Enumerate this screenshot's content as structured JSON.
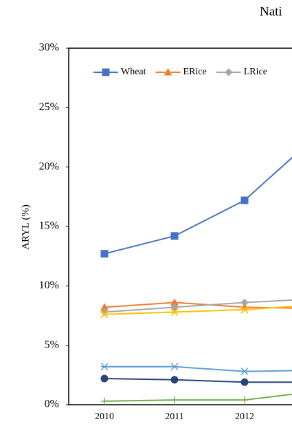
{
  "chart_data": {
    "type": "line",
    "title": "Nati",
    "y_label": "ARYL (%)",
    "categories": [
      "2010",
      "2011",
      "2012",
      null
    ],
    "ylim": [
      0,
      30
    ],
    "yticks": [
      {
        "value": 0,
        "label": "0%"
      },
      {
        "value": 5,
        "label": "5%"
      },
      {
        "value": 10,
        "label": "10%"
      },
      {
        "value": 15,
        "label": "15%"
      },
      {
        "value": 20,
        "label": "20%"
      },
      {
        "value": 25,
        "label": "25%"
      },
      {
        "value": 30,
        "label": "30%"
      }
    ],
    "grid": false,
    "legend": "top",
    "series": [
      {
        "name": "Wheat",
        "color": "#4472c4",
        "marker": "square",
        "values": [
          12.7,
          14.2,
          17.2,
          22.5
        ]
      },
      {
        "name": "ERice",
        "color": "#ed7d31",
        "marker": "triangle",
        "values": [
          8.2,
          8.6,
          8.2,
          8.1
        ]
      },
      {
        "name": "LRice",
        "color": "#a5a5a5",
        "marker": "diamond",
        "values": [
          7.8,
          8.2,
          8.6,
          8.9
        ]
      },
      {
        "color": "#ffc000",
        "marker": "x",
        "values": [
          7.6,
          7.8,
          8.0,
          8.4
        ]
      },
      {
        "color": "#5b9bd5",
        "marker": "star",
        "values": [
          3.2,
          3.2,
          2.8,
          2.9
        ]
      },
      {
        "color": "#264478",
        "marker": "circle",
        "values": [
          2.2,
          2.1,
          1.9,
          1.9
        ]
      },
      {
        "color": "#70ad47",
        "marker": "plus",
        "values": [
          0.3,
          0.4,
          0.4,
          1.1
        ]
      }
    ]
  }
}
